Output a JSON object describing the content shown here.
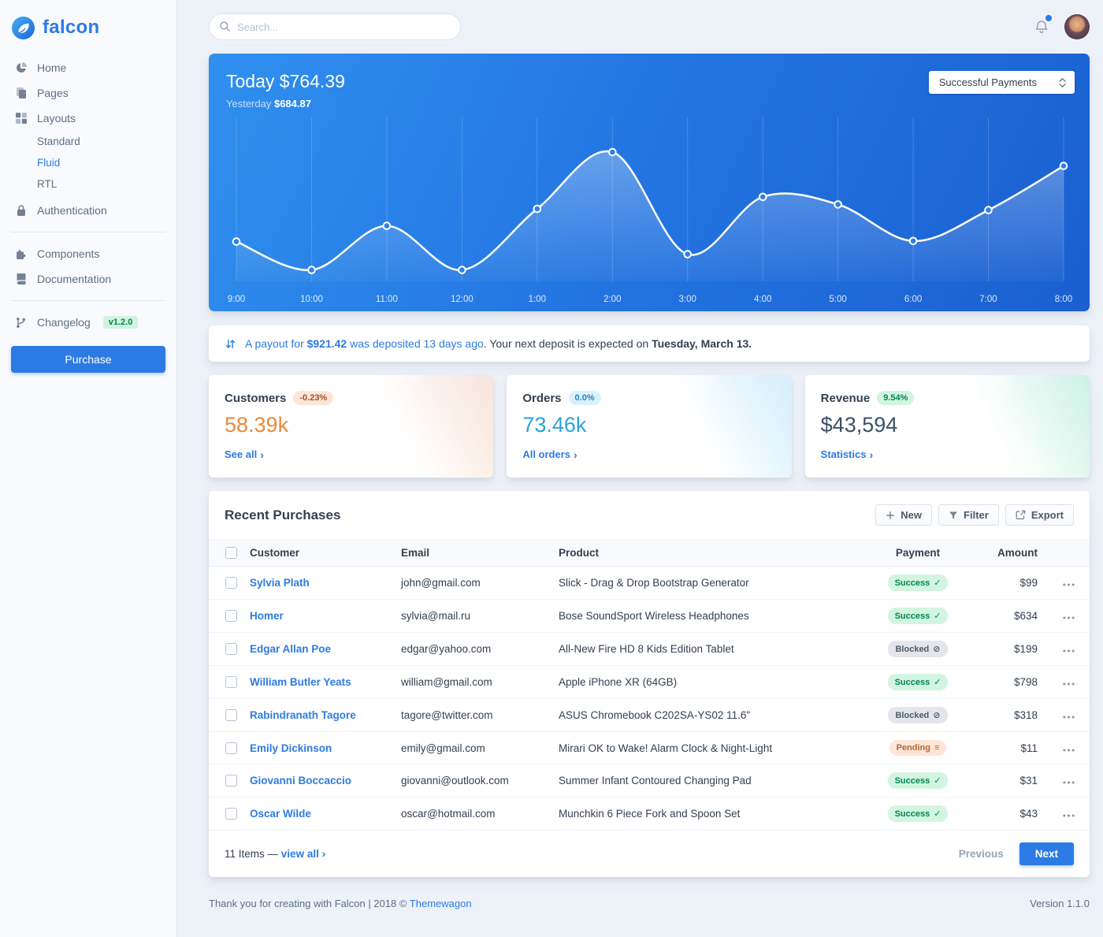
{
  "brand": {
    "name": "falcon"
  },
  "topbar": {
    "search_placeholder": "Search..."
  },
  "sidebar": {
    "items": [
      {
        "label": "Home",
        "icon": "chart-pie-icon"
      },
      {
        "label": "Pages",
        "icon": "copy-icon"
      },
      {
        "label": "Layouts",
        "icon": "grid-icon",
        "children": [
          "Standard",
          "Fluid",
          "RTL"
        ],
        "active_child": "Fluid"
      },
      {
        "label": "Authentication",
        "icon": "lock-icon",
        "divider_after": true
      },
      {
        "label": "Components",
        "icon": "puzzle-icon"
      },
      {
        "label": "Documentation",
        "icon": "book-icon",
        "divider_after": true
      },
      {
        "label": "Changelog",
        "icon": "code-branch-icon",
        "badge": "v1.2.0"
      }
    ],
    "purchase_label": "Purchase"
  },
  "chart_card": {
    "today_label": "Today",
    "today_value": "$764.39",
    "yesterday_label": "Yesterday",
    "yesterday_value": "$684.87",
    "select_value": "Successful Payments"
  },
  "chart_data": {
    "type": "line",
    "title": "Today $764.39 (Successful Payments)",
    "x": [
      "9:00",
      "10:00",
      "11:00",
      "12:00",
      "1:00",
      "2:00",
      "3:00",
      "4:00",
      "5:00",
      "6:00",
      "7:00",
      "8:00"
    ],
    "series": [
      {
        "name": "Successful Payments",
        "values": [
          63,
          18,
          88,
          18,
          115,
          205,
          43,
          134,
          122,
          64,
          113,
          183
        ]
      }
    ],
    "ylim": [
      0,
      230
    ],
    "grid": "vertical-only",
    "legend": "none",
    "line_color": "#ffffff",
    "background": "blue-gradient"
  },
  "payout_banner": {
    "icon": "payout-arrows-icon",
    "link_text_1": "A payout for ",
    "link_amount": "$921.42",
    "link_text_2": " was deposited 13 days ago",
    "plain_text": ". Your next deposit is expected on ",
    "bold_text": "Tuesday, March 13."
  },
  "stats": [
    {
      "title": "Customers",
      "badge": "-0.23%",
      "badge_variant": "warning",
      "value": "58.39k",
      "value_color": "#e8893a",
      "link_label": "See all",
      "tint": "#f5803e"
    },
    {
      "title": "Orders",
      "badge": "0.0%",
      "badge_variant": "info",
      "value": "73.46k",
      "value_color": "#29a3dd",
      "link_label": "All orders",
      "tint": "#27bcfd"
    },
    {
      "title": "Revenue",
      "badge": "9.54%",
      "badge_variant": "success",
      "value": "$43,594",
      "value_color": "#3d5166",
      "link_label": "Statistics",
      "tint": "#00d27a"
    }
  ],
  "purchases": {
    "title": "Recent Purchases",
    "actions": [
      {
        "label": "New",
        "icon": "plus-icon"
      },
      {
        "label": "Filter",
        "icon": "filter-icon"
      },
      {
        "label": "Export",
        "icon": "export-icon"
      }
    ],
    "columns": [
      "Customer",
      "Email",
      "Product",
      "Payment",
      "Amount"
    ],
    "rows": [
      {
        "customer": "Sylvia Plath",
        "email": "john@gmail.com",
        "product": "Slick - Drag & Drop Bootstrap Generator",
        "payment": "Success",
        "amount": "$99"
      },
      {
        "customer": "Homer",
        "email": "sylvia@mail.ru",
        "product": "Bose SoundSport Wireless Headphones",
        "payment": "Success",
        "amount": "$634"
      },
      {
        "customer": "Edgar Allan Poe",
        "email": "edgar@yahoo.com",
        "product": "All-New Fire HD 8 Kids Edition Tablet",
        "payment": "Blocked",
        "amount": "$199"
      },
      {
        "customer": "William Butler Yeats",
        "email": "william@gmail.com",
        "product": "Apple iPhone XR (64GB)",
        "payment": "Success",
        "amount": "$798"
      },
      {
        "customer": "Rabindranath Tagore",
        "email": "tagore@twitter.com",
        "product": "ASUS Chromebook C202SA-YS02 11.6\"",
        "payment": "Blocked",
        "amount": "$318"
      },
      {
        "customer": "Emily Dickinson",
        "email": "emily@gmail.com",
        "product": "Mirari OK to Wake! Alarm Clock & Night-Light",
        "payment": "Pending",
        "amount": "$11"
      },
      {
        "customer": "Giovanni Boccaccio",
        "email": "giovanni@outlook.com",
        "product": "Summer Infant Contoured Changing Pad",
        "payment": "Success",
        "amount": "$31"
      },
      {
        "customer": "Oscar Wilde",
        "email": "oscar@hotmail.com",
        "product": "Munchkin 6 Piece Fork and Spoon Set",
        "payment": "Success",
        "amount": "$43"
      }
    ],
    "payment_status_icons": {
      "Success": "check-icon",
      "Blocked": "ban-icon",
      "Pending": "stream-icon"
    },
    "footer": {
      "items_text": "11 Items —",
      "view_all_label": "view all",
      "previous_label": "Previous",
      "next_label": "Next"
    }
  },
  "page_footer": {
    "left_text": "Thank you for creating with Falcon | 2018 © ",
    "link_text": "Themewagon",
    "version": "Version 1.1.0"
  },
  "colors": {
    "accent": "#2c7be5",
    "success": "#00864e",
    "warning": "#f5803e",
    "info": "#27bcfd",
    "page_bg": "#edf2f9"
  }
}
